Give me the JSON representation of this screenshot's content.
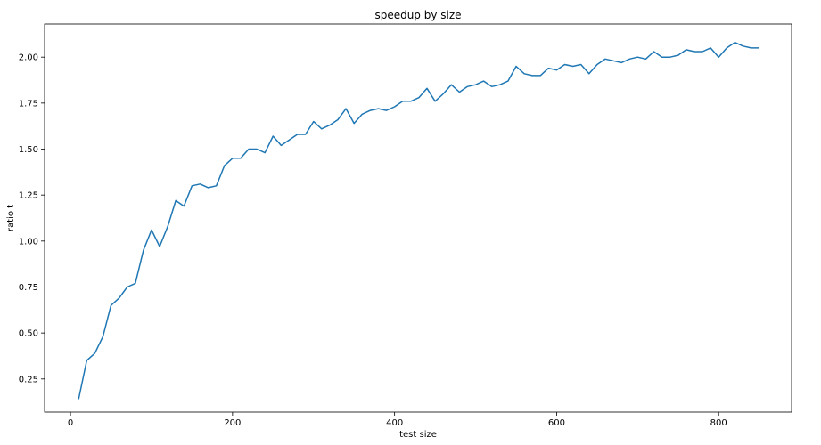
{
  "chart_data": {
    "type": "line",
    "title": "speedup by size",
    "xlabel": "test size",
    "ylabel": "ratio t",
    "xlim": [
      -32,
      890
    ],
    "ylim": [
      0.07,
      2.18
    ],
    "xticks": [
      0,
      200,
      400,
      600,
      800
    ],
    "xtick_labels": [
      "0",
      "200",
      "400",
      "600",
      "800"
    ],
    "yticks": [
      0.25,
      0.5,
      0.75,
      1.0,
      1.25,
      1.5,
      1.75,
      2.0
    ],
    "ytick_labels": [
      "0.25",
      "0.50",
      "0.75",
      "1.00",
      "1.25",
      "1.50",
      "1.75",
      "2.00"
    ],
    "grid": false,
    "color": "#1f77b4",
    "series": [
      {
        "x": [
          10,
          20,
          30,
          40,
          50,
          60,
          70,
          80,
          90,
          100,
          110,
          120,
          130,
          140,
          150,
          160,
          170,
          180,
          190,
          200,
          210,
          220,
          230,
          240,
          250,
          260,
          270,
          280,
          290,
          300,
          310,
          320,
          330,
          340,
          350,
          360,
          370,
          380,
          390,
          400,
          410,
          420,
          430,
          440,
          450,
          460,
          470,
          480,
          490,
          500,
          510,
          520,
          530,
          540,
          550,
          560,
          570,
          580,
          590,
          600,
          610,
          620,
          630,
          640,
          650,
          660,
          670,
          680,
          690,
          700,
          710,
          720,
          730,
          740,
          750,
          760,
          770,
          780,
          790,
          800,
          810,
          820,
          830,
          840,
          850
        ],
        "y": [
          0.14,
          0.35,
          0.39,
          0.48,
          0.65,
          0.69,
          0.75,
          0.77,
          0.95,
          1.06,
          0.97,
          1.08,
          1.22,
          1.19,
          1.3,
          1.31,
          1.29,
          1.3,
          1.41,
          1.45,
          1.45,
          1.5,
          1.5,
          1.48,
          1.57,
          1.52,
          1.55,
          1.58,
          1.58,
          1.65,
          1.61,
          1.63,
          1.66,
          1.72,
          1.64,
          1.69,
          1.71,
          1.72,
          1.71,
          1.73,
          1.76,
          1.76,
          1.78,
          1.83,
          1.76,
          1.8,
          1.85,
          1.81,
          1.84,
          1.85,
          1.87,
          1.84,
          1.85,
          1.87,
          1.95,
          1.91,
          1.9,
          1.9,
          1.94,
          1.93,
          1.96,
          1.95,
          1.96,
          1.91,
          1.96,
          1.99,
          1.98,
          1.97,
          1.99,
          2.0,
          1.99,
          2.03,
          2.0,
          2.0,
          2.01,
          2.04,
          2.03,
          2.03,
          2.05,
          2.0,
          2.05,
          2.08,
          2.06,
          2.05,
          2.05
        ]
      }
    ]
  }
}
